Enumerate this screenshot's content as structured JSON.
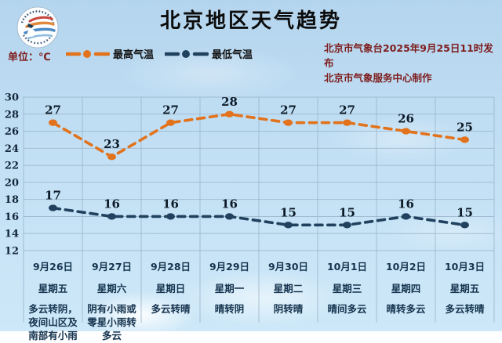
{
  "header": {
    "title": "北京地区天气趋势",
    "unit_label": "单位：℃",
    "issued_line1": "北京市气象台2025年9月25日11时发布",
    "issued_line2": "北京市气象服务中心制作"
  },
  "legend": {
    "items": [
      {
        "label": "最高气温",
        "color": "#e2731c"
      },
      {
        "label": "最低气温",
        "color": "#20425f"
      }
    ]
  },
  "logo": {
    "name": "beijing-meteorological-service-emblem"
  },
  "chart_data": {
    "type": "line",
    "title": "北京地区天气趋势",
    "ylabel": "℃",
    "ylim": [
      12,
      30
    ],
    "yticks": [
      30,
      28,
      26,
      24,
      22,
      20,
      18,
      16,
      14,
      12
    ],
    "grid": true,
    "legend_position": "top-left",
    "line_style": "dashed",
    "categories": [
      "9月26日",
      "9月27日",
      "9月28日",
      "9月29日",
      "9月30日",
      "10月1日",
      "10月2日",
      "10月3日"
    ],
    "weekdays": [
      "星期五",
      "星期六",
      "星期日",
      "星期一",
      "星期二",
      "星期三",
      "星期四",
      "星期五"
    ],
    "weather": [
      "多云转阴，夜间山区及南部有小雨",
      "阴有小雨或零星小雨转多云",
      "多云转晴",
      "晴转阴",
      "阴转晴",
      "晴间多云",
      "晴转多云",
      "多云转晴"
    ],
    "series": [
      {
        "name": "最高气温",
        "color": "#e2731c",
        "values": [
          27,
          23,
          27,
          28,
          27,
          27,
          26,
          25
        ]
      },
      {
        "name": "最低气温",
        "color": "#20425f",
        "values": [
          17,
          16,
          16,
          16,
          15,
          15,
          16,
          15
        ]
      }
    ]
  }
}
